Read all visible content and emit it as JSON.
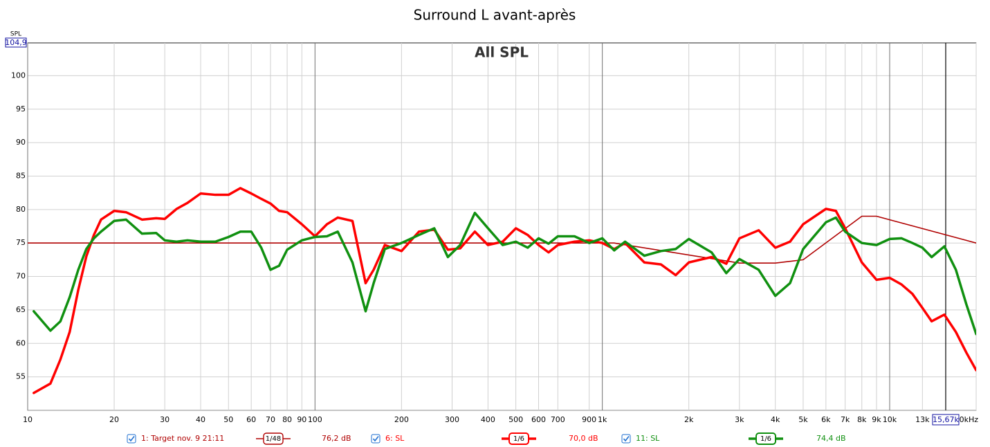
{
  "chart_data": {
    "type": "line",
    "title": "Surround L avant-après",
    "annotation": "All SPL",
    "y_axis_label": "SPL",
    "x_scale": "log",
    "grid": true,
    "xlim": [
      10,
      20000
    ],
    "ylim": [
      50,
      104.9
    ],
    "yticks": [
      55,
      60,
      65,
      70,
      75,
      80,
      85,
      90,
      95,
      100,
      {
        "value": 104.9,
        "label": "104,9"
      }
    ],
    "xticks": [
      10,
      20,
      30,
      40,
      50,
      60,
      70,
      80,
      90,
      100,
      200,
      300,
      400,
      500,
      600,
      700,
      900,
      {
        "value": 1000,
        "label": "1k"
      },
      {
        "value": 2000,
        "label": "2k"
      },
      {
        "value": 3000,
        "label": "3k"
      },
      {
        "value": 4000,
        "label": "4k"
      },
      {
        "value": 5000,
        "label": "5k"
      },
      {
        "value": 6000,
        "label": "6k"
      },
      {
        "value": 7000,
        "label": "7k"
      },
      {
        "value": 8000,
        "label": "8k"
      },
      {
        "value": 9000,
        "label": "9k"
      },
      {
        "value": 10000,
        "label": "10k"
      },
      {
        "value": 13000,
        "label": "13k"
      },
      {
        "value": 20000,
        "label": "20kHz"
      }
    ],
    "cursor": {
      "value": 15670,
      "label": "15,67k"
    },
    "x": [
      10.5,
      12,
      13,
      14,
      15,
      16,
      17,
      18,
      20,
      22,
      25,
      28,
      30,
      33,
      36,
      40,
      45,
      50,
      55,
      60,
      65,
      70,
      75,
      80,
      90,
      100,
      110,
      120,
      135,
      150,
      160,
      175,
      200,
      230,
      260,
      290,
      320,
      360,
      400,
      450,
      500,
      550,
      600,
      650,
      700,
      800,
      900,
      1000,
      1100,
      1200,
      1400,
      1600,
      1800,
      2000,
      2400,
      2700,
      3000,
      3500,
      4000,
      4500,
      5000,
      6000,
      6500,
      7000,
      8000,
      9000,
      10000,
      11000,
      12000,
      13000,
      14000,
      15500,
      17000,
      18500,
      20000
    ],
    "series": [
      {
        "name": "1: Target nov. 9 21:11",
        "smoothing": "1/48",
        "level": "76,2 dB",
        "color": "#b00000",
        "line_width": 1.6,
        "x": [
          10,
          1100,
          3000,
          4000,
          5000,
          8000,
          9000,
          20000
        ],
        "values": [
          75,
          75,
          72,
          72,
          72.5,
          79,
          79,
          75
        ]
      },
      {
        "name": "6: SL",
        "smoothing": "1/6",
        "level": "70,0 dB",
        "color": "#ff0000",
        "line_width": 3.5,
        "values": [
          52.6,
          54,
          57.6,
          61.7,
          68,
          73,
          76.2,
          78.5,
          79.8,
          79.6,
          78.5,
          78.7,
          78.6,
          80.1,
          81,
          82.4,
          82.2,
          82.2,
          83.2,
          82.4,
          81.6,
          80.9,
          79.8,
          79.6,
          77.8,
          76,
          77.8,
          78.8,
          78.3,
          69,
          71,
          74.7,
          73.8,
          76.7,
          77,
          74,
          74.2,
          76.7,
          74.7,
          75.2,
          77.2,
          76.2,
          74.7,
          73.6,
          74.7,
          75.2,
          75.4,
          75,
          74.1,
          75,
          72.1,
          71.8,
          70.2,
          72.1,
          72.9,
          71.9,
          75.7,
          76.9,
          74.3,
          75.2,
          77.8,
          80.1,
          79.8,
          77.2,
          72.1,
          69.5,
          69.8,
          68.8,
          67.4,
          65.3,
          63.3,
          64.3,
          61.7,
          58.6,
          56
        ]
      },
      {
        "name": "11: SL",
        "smoothing": "1/6",
        "level": "74,4 dB",
        "color": "#109010",
        "line_width": 3.5,
        "values": [
          64.8,
          61.9,
          63.3,
          66.9,
          71,
          74.1,
          75.7,
          76.7,
          78.3,
          78.5,
          76.4,
          76.5,
          75.4,
          75.2,
          75.4,
          75.2,
          75.2,
          75.9,
          76.7,
          76.7,
          74.3,
          71,
          71.6,
          74,
          75.4,
          75.9,
          76,
          76.7,
          72.1,
          64.8,
          69,
          74.1,
          75,
          76.2,
          77.2,
          72.9,
          74.7,
          79.5,
          77.2,
          74.7,
          75.2,
          74.3,
          75.7,
          74.9,
          76,
          76,
          75,
          75.7,
          73.9,
          75.2,
          73.1,
          73.8,
          74.1,
          75.6,
          73.6,
          70.5,
          72.6,
          71,
          67.1,
          69,
          74.1,
          78.1,
          78.8,
          76.7,
          75,
          74.7,
          75.6,
          75.7,
          75,
          74.3,
          72.9,
          74.5,
          71,
          65.8,
          61.4
        ]
      }
    ]
  }
}
